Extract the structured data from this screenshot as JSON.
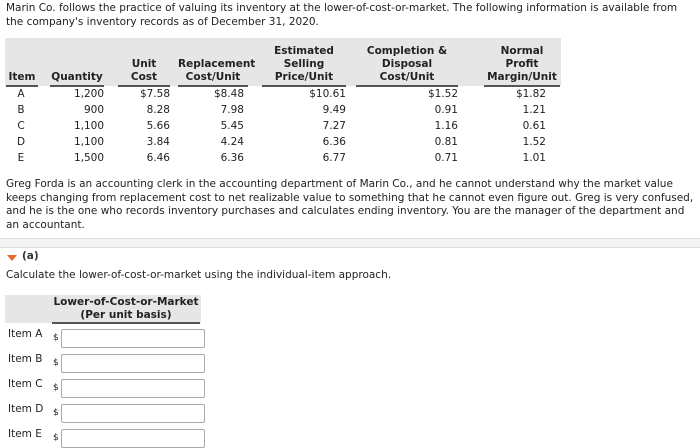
{
  "intro": "Marin Co. follows the practice of valuing its inventory at the lower-of-cost-or-market. The following information is available from the company's inventory records as of December 31, 2020.",
  "table": {
    "headers": [
      "Item",
      "Quantity",
      "Unit Cost",
      "Replacement Cost/Unit",
      "Estimated Selling Price/Unit",
      "Completion & Disposal Cost/Unit",
      "Normal Profit Margin/Unit"
    ],
    "rows": [
      [
        "A",
        "1,200",
        "$7.58",
        "$8.48",
        "$10.61",
        "$1.52",
        "$1.82"
      ],
      [
        "B",
        "900",
        "8.28",
        "7.98",
        "9.49",
        "0.91",
        "1.21"
      ],
      [
        "C",
        "1,100",
        "5.66",
        "5.45",
        "7.27",
        "1.16",
        "0.61"
      ],
      [
        "D",
        "1,100",
        "3.84",
        "4.24",
        "6.36",
        "0.81",
        "1.52"
      ],
      [
        "E",
        "1,500",
        "6.46",
        "6.36",
        "6.77",
        "0.71",
        "1.01"
      ]
    ]
  },
  "paragraph": "Greg Forda is an accounting clerk in the accounting department of Marin Co., and he cannot understand why the market value keeps changing from replacement cost to net realizable value to something that he cannot even figure out. Greg is very confused, and he is the one who records inventory purchases and calculates ending inventory. You are the manager of the department and an accountant.",
  "part_a": {
    "label": "(a)",
    "instruction": "Calculate the lower-of-cost-or-market using the individual-item approach.",
    "header": "Lower-of-Cost-or-Market (Per unit basis)",
    "currency": "$",
    "items": [
      {
        "label": "Item A",
        "value": ""
      },
      {
        "label": "Item B",
        "value": ""
      },
      {
        "label": "Item C",
        "value": ""
      },
      {
        "label": "Item D",
        "value": ""
      },
      {
        "label": "Item E",
        "value": ""
      }
    ]
  },
  "colors": {
    "accent": "#e8672c",
    "header_bg": "#e6e6e6"
  }
}
